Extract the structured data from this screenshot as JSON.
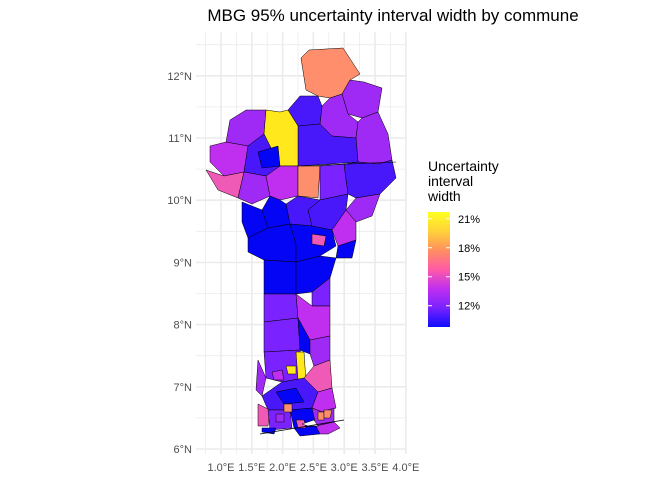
{
  "title": "MBG 95% uncertainty interval width by commune",
  "legend": {
    "title_lines": [
      "Uncertainty",
      "interval",
      "width"
    ],
    "labels": [
      "21%",
      "18%",
      "15%",
      "12%"
    ],
    "colors": [
      "#0d0dff",
      "#7a22ff",
      "#c02ff0",
      "#ff5aa6",
      "#ff8f60",
      "#ffd23a",
      "#ffff20"
    ]
  },
  "chart_data": {
    "type": "choropleth",
    "title": "MBG 95% uncertainty interval width by commune",
    "x_ticks": [
      "1.0°E",
      "1.5°E",
      "2.0°E",
      "2.5°E",
      "3.0°E",
      "3.5°E",
      "4.0°E"
    ],
    "y_ticks": [
      "12°N",
      "11°N",
      "10°N",
      "9°N",
      "8°N",
      "7°N",
      "6°N"
    ],
    "xlim": [
      0.8,
      4.0
    ],
    "ylim": [
      6.0,
      12.4
    ],
    "grid": true,
    "legend_position": "right",
    "color_scale": {
      "legend_breaks": [
        21,
        18,
        15,
        12
      ],
      "unit": "%",
      "palette": "plasma-like"
    },
    "region_colors": {
      "Blue": "#0505f5",
      "Blue-Violet": "#4818fa",
      "Violet": "#7a22ff",
      "Purple": "#a02af5",
      "Magenta": "#c02ff0",
      "Pink": "#ee5ab6",
      "Salmon": "#ff8f6c",
      "Yellow": "#ffe81c"
    }
  }
}
